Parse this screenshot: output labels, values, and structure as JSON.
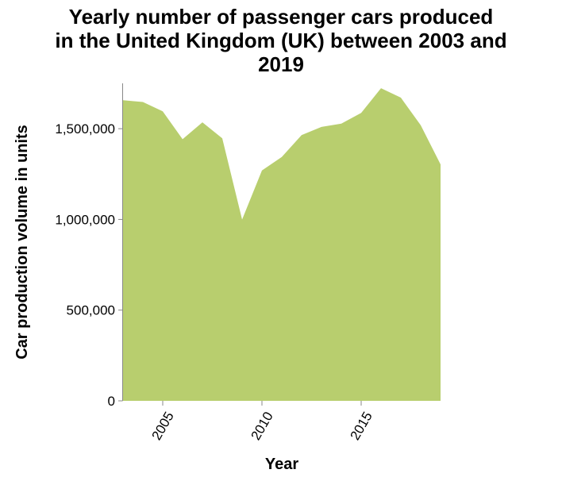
{
  "chart_data": {
    "type": "area",
    "title_lines": [
      "Yearly number of passenger cars produced",
      "in the United Kingdom (UK) between 2003 and",
      "2019"
    ],
    "xlabel": "Year",
    "ylabel": "Car production volume in units",
    "x": [
      2003,
      2004,
      2005,
      2006,
      2007,
      2008,
      2009,
      2010,
      2011,
      2012,
      2013,
      2014,
      2015,
      2016,
      2017,
      2018,
      2019
    ],
    "values": [
      1657000,
      1647000,
      1596000,
      1442000,
      1535000,
      1447000,
      999000,
      1270000,
      1344000,
      1465000,
      1510000,
      1528000,
      1587000,
      1723000,
      1671000,
      1519000,
      1303000
    ],
    "xlim": [
      2003,
      2019
    ],
    "ylim": [
      0,
      1750000
    ],
    "x_ticks": [
      {
        "value": 2005,
        "label": "2005"
      },
      {
        "value": 2010,
        "label": "2010"
      },
      {
        "value": 2015,
        "label": "2015"
      }
    ],
    "y_ticks": [
      {
        "value": 0,
        "label": "0"
      },
      {
        "value": 500000,
        "label": "500,000"
      },
      {
        "value": 1000000,
        "label": "1,000,000"
      },
      {
        "value": 1500000,
        "label": "1,500,000"
      }
    ],
    "grid": false,
    "fill_color": "#b8ce6e"
  }
}
